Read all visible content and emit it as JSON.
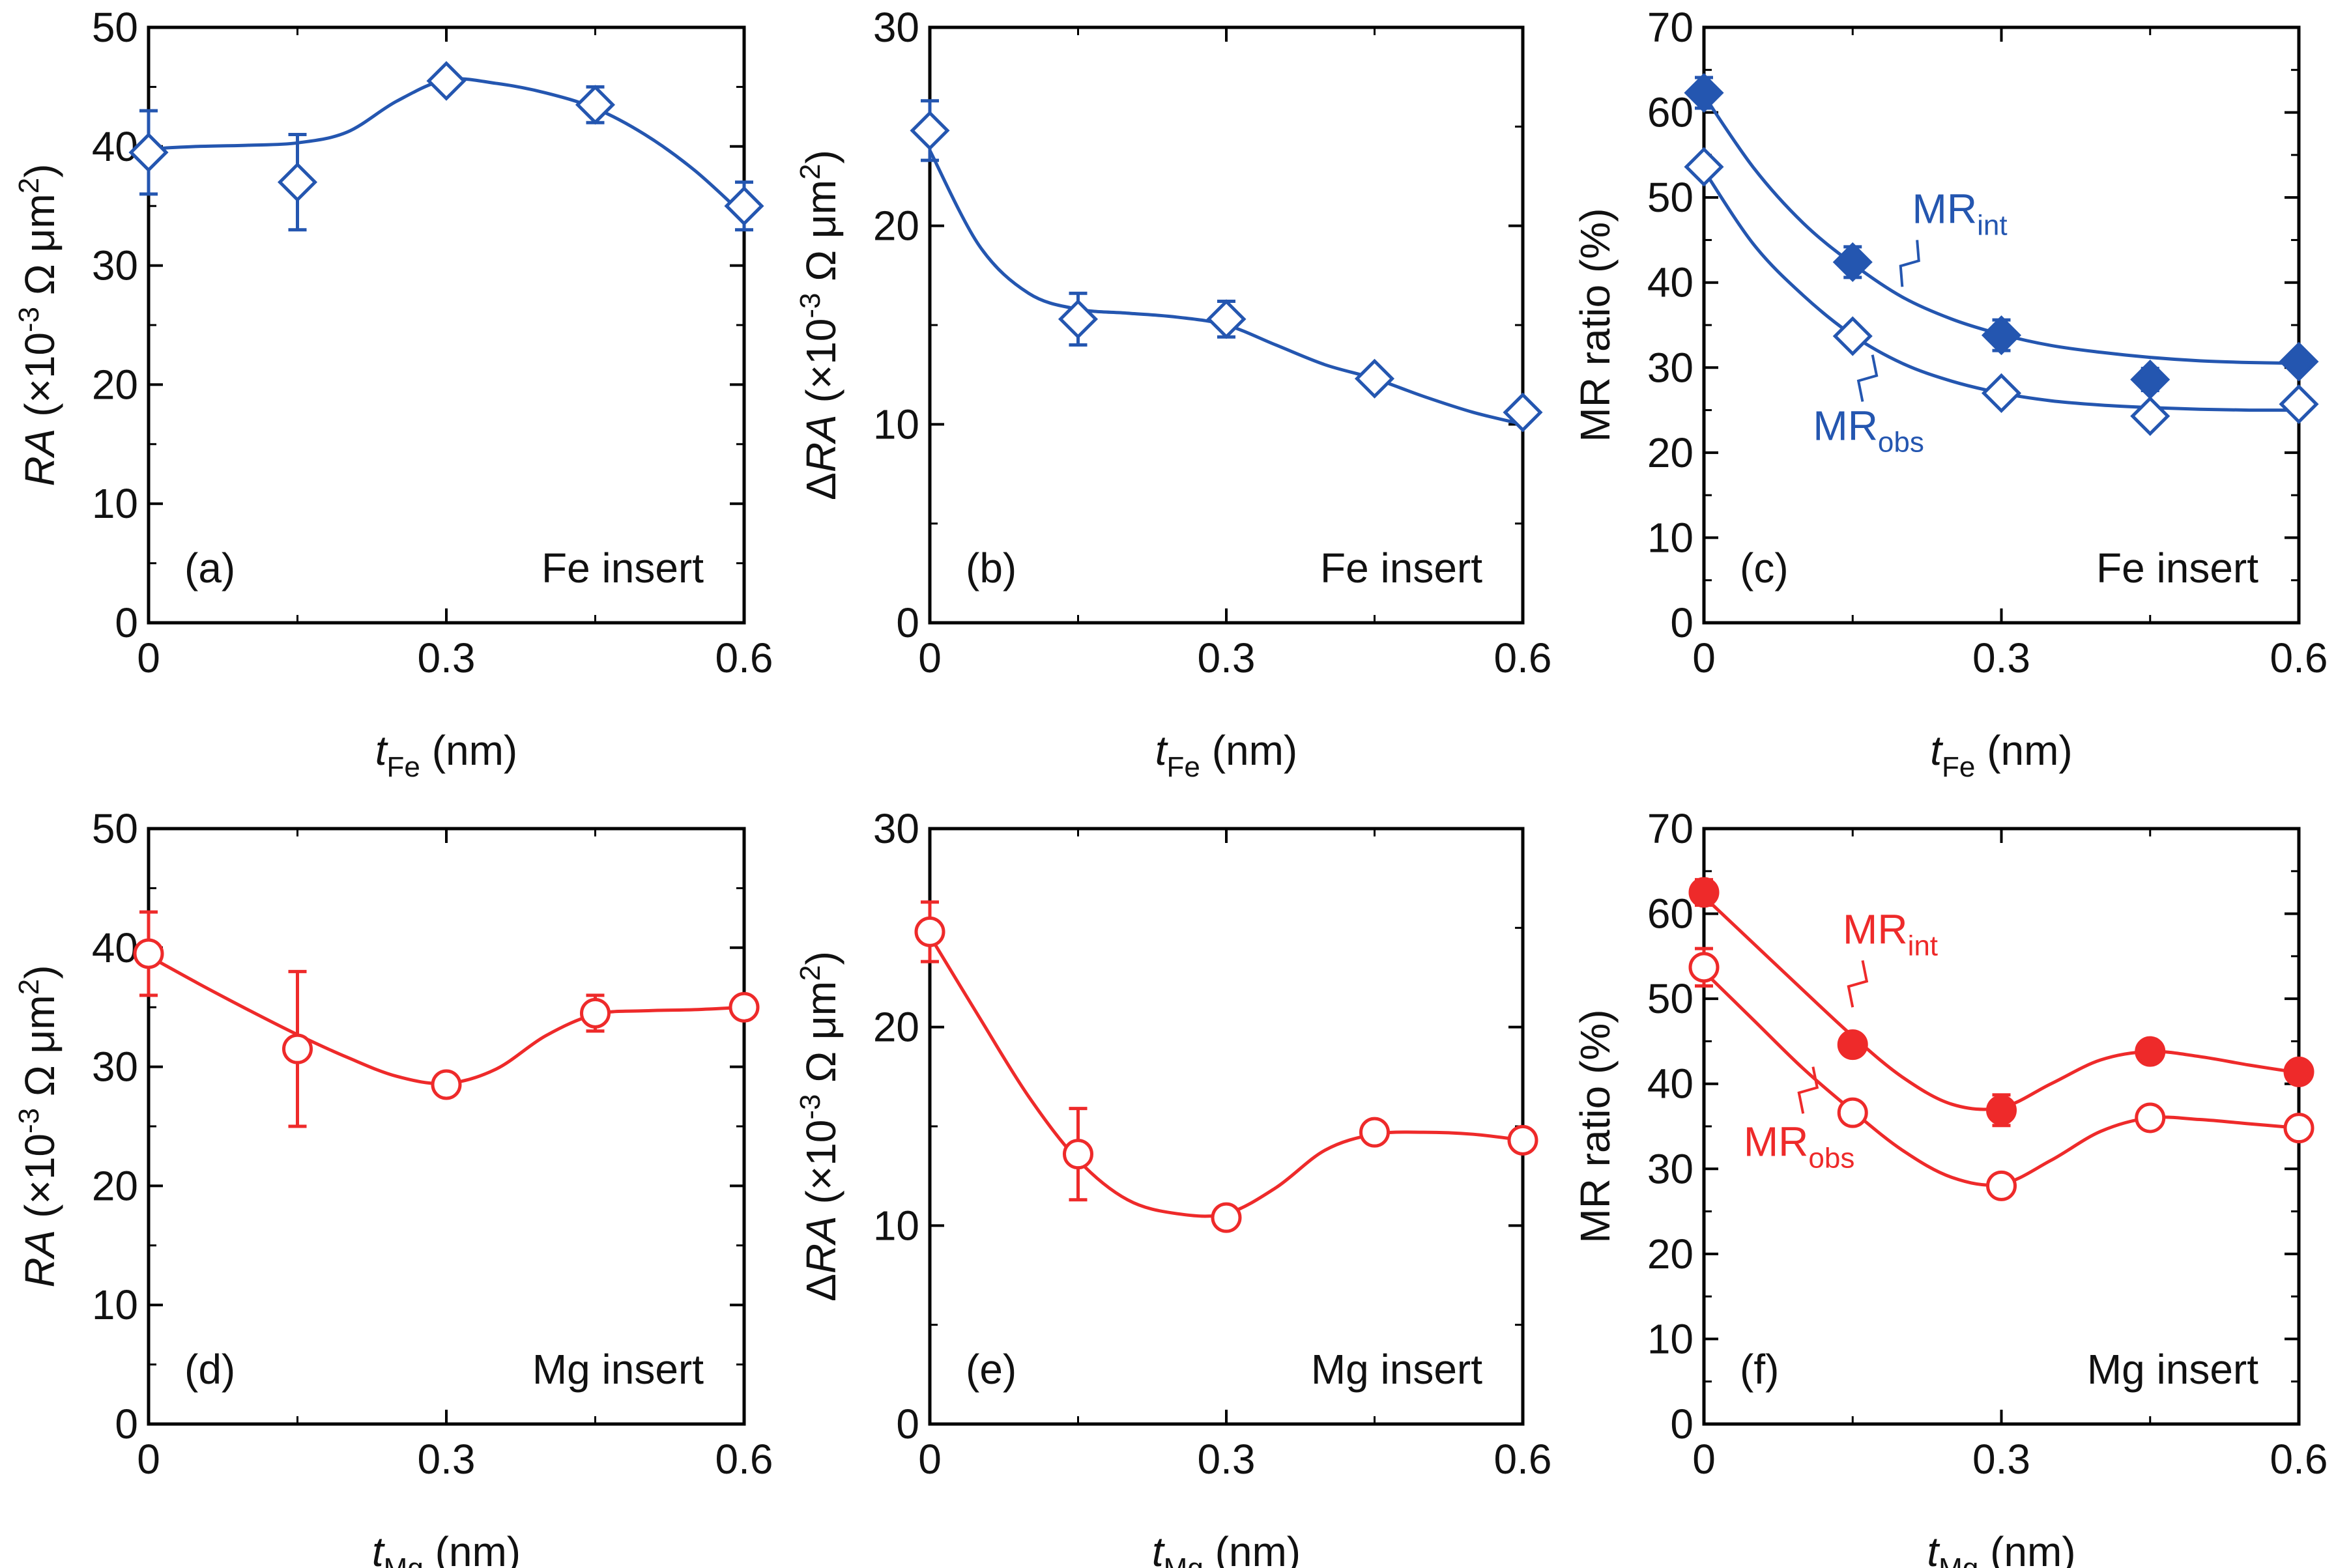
{
  "colors": {
    "fe": "#2456b0",
    "mg": "#ee2a2a",
    "axis": "#000000"
  },
  "chart_data": [
    {
      "id": "a",
      "type": "scatter",
      "panel_label": "(a)",
      "annotation": "Fe insert",
      "xlabel": {
        "var": "t",
        "sub": "Fe",
        "unit": "(nm)"
      },
      "ylabel": {
        "var": "RA",
        "prefix": "",
        "rest": " (×10",
        "sup": "-3",
        "rest2": " Ω μm",
        "sup2": "2",
        "end": ")"
      },
      "xlim": [
        0,
        0.6
      ],
      "ylim": [
        0,
        50
      ],
      "xticks": [
        "0",
        "0.3",
        "0.6"
      ],
      "yticks": [
        "0",
        "10",
        "20",
        "30",
        "40",
        "50"
      ],
      "series": [
        {
          "name": "RA",
          "color": "fe",
          "marker": "diamond",
          "filled": false,
          "x": [
            0,
            0.15,
            0.3,
            0.45,
            0.6
          ],
          "y": [
            39.5,
            37,
            45.5,
            43.5,
            35
          ],
          "err": [
            3.5,
            4,
            0.5,
            1.5,
            2
          ],
          "curve_x": [
            0,
            0.05,
            0.1,
            0.15,
            0.2,
            0.25,
            0.3,
            0.35,
            0.4,
            0.45,
            0.5,
            0.55,
            0.6
          ],
          "curve_y": [
            39.8,
            40.0,
            40.1,
            40.3,
            41.2,
            43.8,
            45.6,
            45.3,
            44.5,
            43.2,
            41.0,
            38.0,
            34.2
          ]
        }
      ]
    },
    {
      "id": "b",
      "type": "scatter",
      "panel_label": "(b)",
      "annotation": "Fe insert",
      "xlabel": {
        "var": "t",
        "sub": "Fe",
        "unit": "(nm)"
      },
      "ylabel": {
        "var": "RA",
        "prefix": "Δ",
        "rest": " (×10",
        "sup": "-3",
        "rest2": " Ω μm",
        "sup2": "2",
        "end": ")"
      },
      "xlim": [
        0,
        0.6
      ],
      "ylim": [
        0,
        30
      ],
      "xticks": [
        "0",
        "0.3",
        "0.6"
      ],
      "yticks": [
        "0",
        "10",
        "20",
        "30"
      ],
      "series": [
        {
          "name": "ΔRA",
          "color": "fe",
          "marker": "diamond",
          "filled": false,
          "x": [
            0,
            0.15,
            0.3,
            0.45,
            0.6
          ],
          "y": [
            24.8,
            15.3,
            15.3,
            12.3,
            10.6
          ],
          "err": [
            1.5,
            1.3,
            0.9,
            0.3,
            0.3
          ],
          "curve_x": [
            0,
            0.05,
            0.1,
            0.15,
            0.2,
            0.25,
            0.3,
            0.35,
            0.4,
            0.45,
            0.5,
            0.55,
            0.6
          ],
          "curve_y": [
            23.8,
            19.0,
            16.6,
            15.8,
            15.6,
            15.4,
            15.0,
            14.0,
            13.0,
            12.3,
            11.4,
            10.6,
            10.0
          ]
        }
      ]
    },
    {
      "id": "c",
      "type": "scatter",
      "panel_label": "(c)",
      "annotation": "Fe insert",
      "xlabel": {
        "var": "t",
        "sub": "Fe",
        "unit": "(nm)"
      },
      "ylabel": {
        "plain": "MR ratio (%)"
      },
      "xlim": [
        0,
        0.6
      ],
      "ylim": [
        0,
        70
      ],
      "xticks": [
        "0",
        "0.3",
        "0.6"
      ],
      "yticks": [
        "0",
        "10",
        "20",
        "30",
        "40",
        "50",
        "60",
        "70"
      ],
      "series": [
        {
          "name": "MR",
          "sub": "int",
          "color": "fe",
          "marker": "diamond",
          "filled": true,
          "x": [
            0,
            0.15,
            0.3,
            0.45,
            0.6
          ],
          "y": [
            62.3,
            42.4,
            33.8,
            28.6,
            30.7
          ],
          "err": [
            1.8,
            1.8,
            1.8,
            1.3,
            0.8
          ],
          "curve_x": [
            0,
            0.05,
            0.1,
            0.15,
            0.2,
            0.25,
            0.3,
            0.35,
            0.4,
            0.45,
            0.5,
            0.55,
            0.6
          ],
          "curve_y": [
            62.0,
            53.5,
            47.0,
            42.2,
            38.3,
            35.7,
            33.9,
            32.6,
            31.8,
            31.2,
            30.8,
            30.6,
            30.5
          ],
          "label_xy": [
            0.21,
            47
          ],
          "pointer": [
            0.215,
            45,
            0.2,
            39.5
          ]
        },
        {
          "name": "MR",
          "sub": "obs",
          "color": "fe",
          "marker": "diamond",
          "filled": false,
          "x": [
            0,
            0.15,
            0.3,
            0.45,
            0.6
          ],
          "y": [
            53.6,
            33.7,
            27,
            24.3,
            25.7
          ],
          "err": [
            0.5,
            0.5,
            0.5,
            0.5,
            0.5
          ],
          "curve_x": [
            0,
            0.05,
            0.1,
            0.15,
            0.2,
            0.25,
            0.3,
            0.35,
            0.4,
            0.45,
            0.5,
            0.55,
            0.6
          ],
          "curve_y": [
            53.2,
            44.5,
            38.5,
            33.8,
            30.5,
            28.4,
            27.0,
            26.1,
            25.6,
            25.3,
            25.1,
            25.0,
            25.0
          ],
          "label_xy": [
            0.11,
            21.5
          ],
          "pointer": [
            0.17,
            31.5,
            0.16,
            26
          ]
        }
      ]
    },
    {
      "id": "d",
      "type": "scatter",
      "panel_label": "(d)",
      "annotation": "Mg insert",
      "xlabel": {
        "var": "t",
        "sub": "Mg",
        "unit": "(nm)"
      },
      "ylabel": {
        "var": "RA",
        "prefix": "",
        "rest": " (×10",
        "sup": "-3",
        "rest2": " Ω μm",
        "sup2": "2",
        "end": ")"
      },
      "xlim": [
        0,
        0.6
      ],
      "ylim": [
        0,
        50
      ],
      "xticks": [
        "0",
        "0.3",
        "0.6"
      ],
      "yticks": [
        "0",
        "10",
        "20",
        "30",
        "40",
        "50"
      ],
      "series": [
        {
          "name": "RA",
          "color": "mg",
          "marker": "circle",
          "filled": false,
          "x": [
            0,
            0.15,
            0.3,
            0.45,
            0.6
          ],
          "y": [
            39.5,
            31.5,
            28.5,
            34.5,
            35
          ],
          "err": [
            3.5,
            6.5,
            0.5,
            1.5,
            0.5
          ],
          "curve_x": [
            0,
            0.05,
            0.1,
            0.15,
            0.2,
            0.25,
            0.3,
            0.35,
            0.4,
            0.45,
            0.5,
            0.55,
            0.6
          ],
          "curve_y": [
            39.3,
            37.0,
            34.8,
            32.7,
            30.8,
            29.2,
            28.6,
            29.8,
            32.6,
            34.4,
            34.7,
            34.8,
            35.0
          ]
        }
      ]
    },
    {
      "id": "e",
      "type": "scatter",
      "panel_label": "(e)",
      "annotation": "Mg insert",
      "xlabel": {
        "var": "t",
        "sub": "Mg",
        "unit": "(nm)"
      },
      "ylabel": {
        "var": "RA",
        "prefix": "Δ",
        "rest": " (×10",
        "sup": "-3",
        "rest2": " Ω μm",
        "sup2": "2",
        "end": ")"
      },
      "xlim": [
        0,
        0.6
      ],
      "ylim": [
        0,
        30
      ],
      "xticks": [
        "0",
        "0.3",
        "0.6"
      ],
      "yticks": [
        "0",
        "10",
        "20",
        "30"
      ],
      "series": [
        {
          "name": "ΔRA",
          "color": "mg",
          "marker": "circle",
          "filled": false,
          "x": [
            0,
            0.15,
            0.3,
            0.45,
            0.6
          ],
          "y": [
            24.8,
            13.6,
            10.4,
            14.7,
            14.3
          ],
          "err": [
            1.5,
            2.3,
            0.3,
            0.3,
            0.3
          ],
          "curve_x": [
            0,
            0.05,
            0.1,
            0.15,
            0.2,
            0.25,
            0.3,
            0.35,
            0.4,
            0.45,
            0.5,
            0.55,
            0.6
          ],
          "curve_y": [
            24.6,
            20.5,
            16.5,
            13.3,
            11.3,
            10.6,
            10.6,
            11.9,
            13.8,
            14.6,
            14.7,
            14.6,
            14.3
          ]
        }
      ]
    },
    {
      "id": "f",
      "type": "scatter",
      "panel_label": "(f)",
      "annotation": "Mg insert",
      "xlabel": {
        "var": "t",
        "sub": "Mg",
        "unit": "(nm)"
      },
      "ylabel": {
        "plain": "MR ratio (%)"
      },
      "xlim": [
        0,
        0.6
      ],
      "ylim": [
        0,
        70
      ],
      "xticks": [
        "0",
        "0.3",
        "0.6"
      ],
      "yticks": [
        "0",
        "10",
        "20",
        "30",
        "40",
        "50",
        "60",
        "70"
      ],
      "series": [
        {
          "name": "MR",
          "sub": "int",
          "color": "mg",
          "marker": "circle",
          "filled": true,
          "x": [
            0,
            0.15,
            0.3,
            0.45,
            0.6
          ],
          "y": [
            62.5,
            44.6,
            36.9,
            43.8,
            41.4
          ],
          "err": [
            1.5,
            1.2,
            1.8,
            0.8,
            0.8
          ],
          "curve_x": [
            0,
            0.05,
            0.1,
            0.15,
            0.2,
            0.25,
            0.3,
            0.35,
            0.4,
            0.45,
            0.5,
            0.55,
            0.6
          ],
          "curve_y": [
            62.0,
            56.5,
            51.0,
            45.6,
            40.8,
            37.6,
            37.2,
            40.0,
            42.8,
            43.8,
            43.2,
            42.2,
            41.3
          ],
          "label_xy": [
            0.14,
            56.5
          ],
          "pointer": [
            0.16,
            54.5,
            0.15,
            49
          ]
        },
        {
          "name": "MR",
          "sub": "obs",
          "color": "mg",
          "marker": "circle",
          "filled": false,
          "x": [
            0,
            0.15,
            0.3,
            0.45,
            0.6
          ],
          "y": [
            53.7,
            36.6,
            28,
            36,
            34.8
          ],
          "err": [
            2.2,
            1.2,
            0.5,
            0.5,
            0.5
          ],
          "curve_x": [
            0,
            0.05,
            0.1,
            0.15,
            0.2,
            0.25,
            0.3,
            0.35,
            0.4,
            0.45,
            0.5,
            0.55,
            0.6
          ],
          "curve_y": [
            53.2,
            47.5,
            41.8,
            36.8,
            32.2,
            29.0,
            28.2,
            31.0,
            34.4,
            36.0,
            35.8,
            35.3,
            34.8
          ],
          "label_xy": [
            0.04,
            31.5
          ],
          "pointer": [
            0.11,
            42,
            0.1,
            36.5
          ]
        }
      ]
    }
  ]
}
